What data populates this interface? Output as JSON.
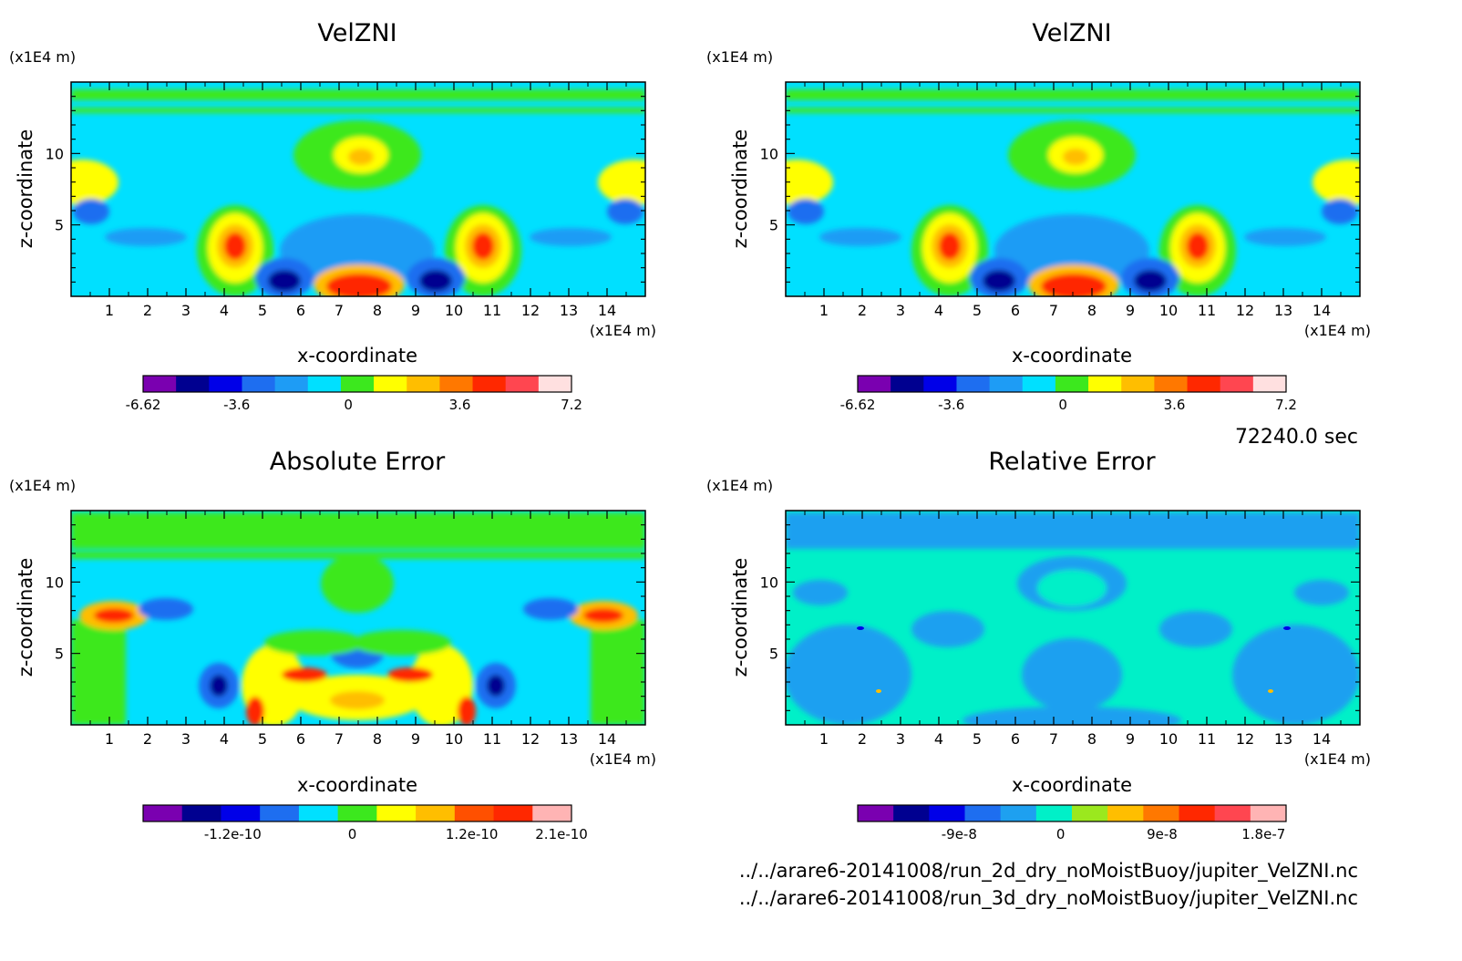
{
  "chart_data": [
    {
      "type": "heatmap",
      "title": "VelZNI",
      "xlabel": "x-coordinate",
      "ylabel": "z-coordinate",
      "x_unit": "(x1E4 m)",
      "z_unit": "(x1E4 m)",
      "xlim": [
        0,
        15
      ],
      "zlim": [
        0,
        15
      ],
      "x_ticks": [
        "1",
        "2",
        "3",
        "4",
        "5",
        "6",
        "7",
        "8",
        "9",
        "10",
        "11",
        "12",
        "13",
        "14"
      ],
      "z_ticks": [
        "5",
        "10"
      ],
      "colorbar": {
        "range": [
          -6.62,
          7.2
        ],
        "labels": [
          "-6.62",
          "-3.6",
          "0",
          "3.6",
          "7.2"
        ],
        "label_values": [
          -6.62,
          -3.6,
          0,
          3.6,
          7.2
        ],
        "colors": [
          "#7a00b0",
          "#000090",
          "#0000e8",
          "#1e6ef0",
          "#1e9cf5",
          "#00e0ff",
          "#3ce81e",
          "#ffff00",
          "#ffbe00",
          "#ff7800",
          "#ff2800",
          "#ff4650",
          "#ffe0e0"
        ]
      }
    },
    {
      "type": "heatmap",
      "title": "VelZNI",
      "xlabel": "x-coordinate",
      "ylabel": "z-coordinate",
      "x_unit": "(x1E4 m)",
      "z_unit": "(x1E4 m)",
      "xlim": [
        0,
        15
      ],
      "zlim": [
        0,
        15
      ],
      "x_ticks": [
        "1",
        "2",
        "3",
        "4",
        "5",
        "6",
        "7",
        "8",
        "9",
        "10",
        "11",
        "12",
        "13",
        "14"
      ],
      "z_ticks": [
        "5",
        "10"
      ],
      "colorbar": {
        "range": [
          -6.62,
          7.2
        ],
        "labels": [
          "-6.62",
          "-3.6",
          "0",
          "3.6",
          "7.2"
        ],
        "label_values": [
          -6.62,
          -3.6,
          0,
          3.6,
          7.2
        ],
        "colors": [
          "#7a00b0",
          "#000090",
          "#0000e8",
          "#1e6ef0",
          "#1e9cf5",
          "#00e0ff",
          "#3ce81e",
          "#ffff00",
          "#ffbe00",
          "#ff7800",
          "#ff2800",
          "#ff4650",
          "#ffe0e0"
        ]
      }
    },
    {
      "type": "heatmap",
      "title": "Absolute Error",
      "xlabel": "x-coordinate",
      "ylabel": "z-coordinate",
      "x_unit": "(x1E4 m)",
      "z_unit": "(x1E4 m)",
      "xlim": [
        0,
        15
      ],
      "zlim": [
        0,
        15
      ],
      "x_ticks": [
        "1",
        "2",
        "3",
        "4",
        "5",
        "6",
        "7",
        "8",
        "9",
        "10",
        "11",
        "12",
        "13",
        "14"
      ],
      "z_ticks": [
        "5",
        "10"
      ],
      "colorbar": {
        "range": [
          -2.1e-10,
          2.2e-10
        ],
        "labels": [
          "-1.2e-10",
          "0",
          "1.2e-10",
          "2.1e-10"
        ],
        "label_values": [
          -1.2e-10,
          0,
          1.2e-10,
          2.1e-10
        ],
        "colors": [
          "#7a00b0",
          "#000090",
          "#0000e8",
          "#1e6ef0",
          "#00e0ff",
          "#3ce81e",
          "#ffff00",
          "#ffbe00",
          "#ff5000",
          "#ff2800",
          "#ffb4b4"
        ]
      }
    },
    {
      "type": "heatmap",
      "title": "Relative Error",
      "xlabel": "x-coordinate",
      "ylabel": "z-coordinate",
      "x_unit": "(x1E4 m)",
      "z_unit": "(x1E4 m)",
      "xlim": [
        0,
        15
      ],
      "zlim": [
        0,
        15
      ],
      "x_ticks": [
        "1",
        "2",
        "3",
        "4",
        "5",
        "6",
        "7",
        "8",
        "9",
        "10",
        "11",
        "12",
        "13",
        "14"
      ],
      "z_ticks": [
        "5",
        "10"
      ],
      "colorbar": {
        "range": [
          -1.8e-07,
          2e-07
        ],
        "labels": [
          "-9e-8",
          "0",
          "9e-8",
          "1.8e-7"
        ],
        "label_values": [
          -9e-08,
          0,
          9e-08,
          1.8e-07
        ],
        "colors": [
          "#7a00b0",
          "#000090",
          "#0000e8",
          "#1e6ef0",
          "#1ea0f0",
          "#00f0c8",
          "#9be81e",
          "#ffbe00",
          "#ff7800",
          "#ff2800",
          "#ff4650",
          "#ffb4b4"
        ]
      }
    }
  ],
  "info": {
    "time": "72240.0 sec",
    "file1": "../../arare6-20141008/run_2d_dry_noMoistBuoy/jupiter_VelZNI.nc",
    "file2": "../../arare6-20141008/run_3d_dry_noMoistBuoy/jupiter_VelZNI.nc"
  }
}
